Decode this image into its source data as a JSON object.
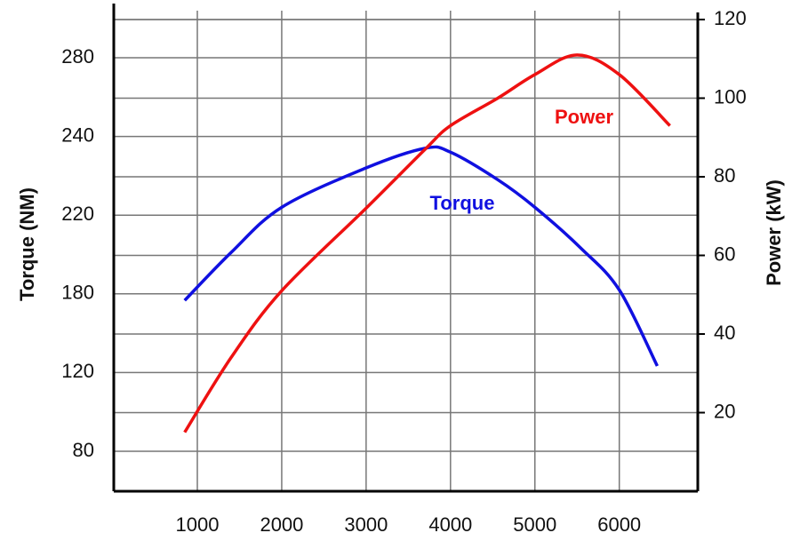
{
  "chart_data": {
    "type": "line",
    "ylabel": "Torque (NM)",
    "y2label": "Power (kW)",
    "xlim": [
      10,
      6930
    ],
    "xticks": [
      1000,
      2000,
      3000,
      4000,
      5000,
      6000
    ],
    "ylim": [
      60,
      300
    ],
    "yticks": [
      80,
      120,
      180,
      220,
      240,
      280
    ],
    "y2lim": [
      0,
      120
    ],
    "y2ticks": [
      20,
      40,
      60,
      80,
      100,
      120
    ],
    "grid": true,
    "series": [
      {
        "name": "Torque",
        "color": "#1010e0",
        "axis": "y",
        "x": [
          850,
          1400,
          2000,
          3000,
          3700,
          4000,
          4560,
          5000,
          5550,
          6000,
          6450
        ],
        "values": [
          175,
          201,
          222,
          232,
          237,
          236,
          229,
          222,
          203,
          182,
          125
        ]
      },
      {
        "name": "Power",
        "color": "#ee1111",
        "axis": "y2",
        "x": [
          850,
          1400,
          2000,
          3000,
          3700,
          4000,
          4560,
          5000,
          5500,
          6000,
          6600
        ],
        "values": [
          15,
          34,
          51,
          72,
          87,
          93,
          100,
          106,
          111,
          106,
          93
        ]
      }
    ]
  }
}
